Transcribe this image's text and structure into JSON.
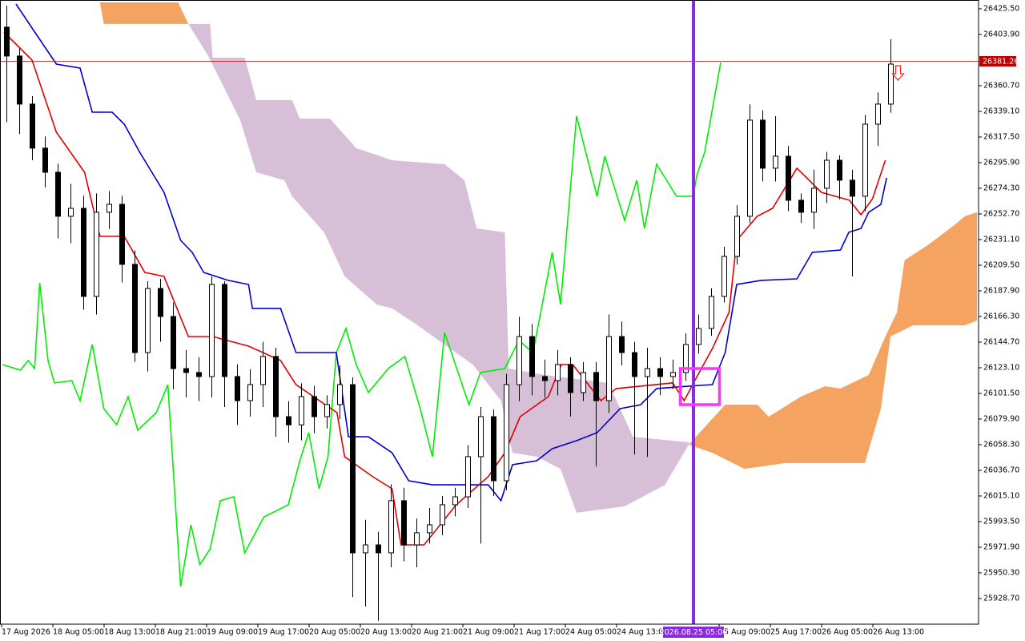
{
  "chart_data": {
    "type": "candlestick",
    "xlim": [
      -0.5,
      75.875
    ],
    "ylim": [
      25907.1,
      26432.9
    ],
    "yticks": [
      {
        "value": 26425.5,
        "label": "26425.50"
      },
      {
        "value": 26403.9,
        "label": "26403.90"
      },
      {
        "value": 26360.7,
        "label": "26360.70"
      },
      {
        "value": 26339.1,
        "label": "26339.10"
      },
      {
        "value": 26317.5,
        "label": "26317.50"
      },
      {
        "value": 26295.9,
        "label": "26295.90"
      },
      {
        "value": 26274.3,
        "label": "26274.30"
      },
      {
        "value": 26252.7,
        "label": "26252.70"
      },
      {
        "value": 26231.1,
        "label": "26231.10"
      },
      {
        "value": 26209.5,
        "label": "26209.50"
      },
      {
        "value": 26187.9,
        "label": "26187.90"
      },
      {
        "value": 26166.3,
        "label": "26166.30"
      },
      {
        "value": 26144.7,
        "label": "26144.70"
      },
      {
        "value": 26123.1,
        "label": "26123.10"
      },
      {
        "value": 26101.5,
        "label": "26101.50"
      },
      {
        "value": 26079.9,
        "label": "26079.90"
      },
      {
        "value": 26058.3,
        "label": "26058.30"
      },
      {
        "value": 26036.7,
        "label": "26036.70"
      },
      {
        "value": 26015.1,
        "label": "26015.10"
      },
      {
        "value": 25993.5,
        "label": "25993.50"
      },
      {
        "value": 25971.9,
        "label": "25971.90"
      },
      {
        "value": 25950.3,
        "label": "25950.30"
      },
      {
        "value": 25928.7,
        "label": "25928.70"
      }
    ],
    "x_labels": [
      "17 Aug 2026",
      "18 Aug 05:00",
      "18 Aug 13:00",
      "18 Aug 21:00",
      "19 Aug 09:00",
      "19 Aug 17:00",
      "20 Aug 05:00",
      "20 Aug 13:00",
      "20 Aug 21:00",
      "21 Aug 09:00",
      "21 Aug 17:00",
      "24 Aug 05:00",
      "24 Aug 13:00",
      null,
      "25 Aug 09:00",
      "25 Aug 17:00",
      "26 Aug 05:00",
      "26 Aug 13:00"
    ],
    "cursor_label": "2026.08.25 05:00",
    "current_price": 26381.26,
    "candles": {
      "open": [
        26410.0,
        26385.7,
        26345.2,
        26308.1,
        26287.8,
        26250.7,
        26257.4,
        26183.2,
        26254.1,
        26260.8,
        26210.2,
        26135.9,
        26189.9,
        26166.3,
        26122.4,
        26119.1,
        26115.7,
        26193.3,
        26115.7,
        26095.4,
        26108.9,
        26132.6,
        26081.9,
        26075.0,
        26098.8,
        26081.9,
        26092.1,
        26108.9,
        25967.2,
        25973.9,
        25967.2,
        26011.1,
        25973.9,
        25984.1,
        25990.8,
        26007.7,
        26014.4,
        26048.2,
        26081.9,
        26027.9,
        26108.9,
        26149.4,
        26115.7,
        26112.3,
        26125.8,
        26102.2,
        26119.1,
        26095.4,
        26149.4,
        26135.9,
        26115.7,
        26122.4,
        26115.7,
        26119.1,
        26142.7,
        26156.2,
        26183.2,
        26216.9,
        26250.7,
        26331.7,
        26291.2,
        26301.3,
        26264.2,
        26254.1,
        26274.3,
        26297.9,
        26281.1,
        26267.6,
        26328.3,
        26345.2
      ],
      "high": [
        26428,
        26392,
        26352,
        26318,
        26295,
        26278,
        26268,
        26270,
        26272,
        26268,
        26222,
        26196,
        26198,
        26178,
        26138,
        26132,
        26200,
        26196,
        26126,
        26122,
        26145,
        26140,
        26095,
        26110,
        26108,
        26100,
        26125,
        26115,
        25995,
        25985,
        26025,
        26022,
        25996,
        26005,
        26015,
        26022,
        26058,
        26090,
        26088,
        26118,
        26166,
        26160,
        26130,
        26138,
        26132,
        26128,
        26128,
        26168,
        26162,
        26145,
        26140,
        26132,
        26130,
        26152,
        26168,
        26190,
        26225,
        26260,
        26345,
        26340,
        26335,
        26310,
        26270,
        26290,
        26305,
        26302,
        26290,
        26336,
        26355,
        26400
      ],
      "low": [
        26330,
        26320,
        26298,
        26275,
        26232,
        26228,
        26172,
        26168,
        26240,
        26195,
        26128,
        26120,
        26145,
        26105,
        26098,
        26095,
        26098,
        26090,
        26075,
        26082,
        26090,
        26065,
        26060,
        26062,
        26068,
        26072,
        26080,
        25930,
        25922,
        25910,
        25955,
        25960,
        25955,
        25975,
        25982,
        25998,
        26005,
        25975,
        26015,
        26020,
        26095,
        26100,
        26098,
        26100,
        26082,
        26095,
        26040,
        26085,
        26125,
        26050,
        26048,
        26100,
        26105,
        26112,
        26135,
        26150,
        26178,
        26210,
        26245,
        26280,
        26280,
        26255,
        26245,
        26240,
        26262,
        26265,
        26200,
        26255,
        26310,
        26338
      ],
      "close": [
        26385.7,
        26345.2,
        26308.1,
        26287.8,
        26250.7,
        26257.4,
        26183.2,
        26254.1,
        26260.8,
        26210.2,
        26135.9,
        26189.9,
        26166.3,
        26122.4,
        26119.1,
        26115.7,
        26193.3,
        26115.7,
        26095.4,
        26108.9,
        26132.6,
        26081.9,
        26075.0,
        26098.8,
        26081.9,
        26092.1,
        26108.9,
        25967.2,
        25973.9,
        25967.2,
        26011.1,
        25973.9,
        25984.1,
        25990.8,
        26007.7,
        26014.4,
        26048.2,
        26081.9,
        26027.9,
        26108.9,
        26149.4,
        26115.7,
        26112.3,
        26125.8,
        26102.2,
        26119.1,
        26095.4,
        26149.4,
        26135.9,
        26115.7,
        26122.4,
        26115.7,
        26119.1,
        26142.7,
        26156.2,
        26183.2,
        26216.9,
        26250.7,
        26331.7,
        26291.2,
        26301.3,
        26264.2,
        26254.1,
        26274.3,
        26297.9,
        26281.1,
        26267.6,
        26328.3,
        26345.2,
        26378.9
      ]
    },
    "clouds": [
      {
        "color": "#f4a460",
        "upper": {
          "x": [
            7.3,
            13.4
          ],
          "values": [
            26430.9,
            26430.9
          ]
        },
        "lower": {
          "x": [
            7.6,
            14.2
          ],
          "values": [
            26412.7,
            26412.7
          ]
        }
      },
      {
        "color": "#d8bfd8",
        "upper": {
          "x": [
            14.2,
            15.9,
            16.1,
            18.6,
            19.5,
            22.3,
            22.9,
            25.25,
            27.3,
            30.1,
            34.2,
            35.75,
            36.7,
            38.9,
            39.2,
            42.0,
            47.0,
            48.9,
            53.25
          ],
          "values": [
            26412.7,
            26412.7,
            26384.3,
            26384.3,
            26348.6,
            26348.6,
            26333.0,
            26333.0,
            26308.1,
            26297.9,
            26294.5,
            26281.0,
            26240.5,
            26237.2,
            26122.4,
            26117.0,
            26110.3,
            26065.0,
            26060.3
          ]
        },
        "lower": {
          "x": [
            14.2,
            15.75,
            16.7,
            18.25,
            19.5,
            21.7,
            22.3,
            24.8,
            26.4,
            28.9,
            30.1,
            32.0,
            34.2,
            36.4,
            38.6,
            39.5,
            41.4,
            43.25,
            44.5,
            48.25,
            51.4,
            53.25
          ],
          "values": [
            26412.7,
            26385.7,
            26365.4,
            26331.7,
            26287.8,
            26281.0,
            26267.5,
            26237.2,
            26200.1,
            26176.4,
            26173.1,
            26159.6,
            26142.7,
            26125.8,
            26095.4,
            26051.5,
            26048.2,
            26038.0,
            26001.0,
            26006.3,
            26024.5,
            26058.3
          ]
        }
      },
      {
        "color": "#f4a460",
        "upper": {
          "x": [
            53.25,
            56.1,
            58.6,
            59.5,
            62.0,
            63.9,
            65.1,
            67.3,
            68.6,
            69.5,
            70.1,
            72.0,
            73.9,
            74.8,
            75.75
          ],
          "values": [
            26058.3,
            26092.0,
            26092.0,
            26081.9,
            26098.8,
            26107.6,
            26105.6,
            26117.0,
            26149.4,
            26169.7,
            26213.6,
            26227.1,
            26242.6,
            26250.7,
            26254.1
          ]
        },
        "lower": {
          "x": [
            53.25,
            55.1,
            57.6,
            60.75,
            67.0,
            68.25,
            69.0,
            70.75,
            74.8,
            75.75
          ],
          "values": [
            26058.3,
            26051.5,
            26038.0,
            26042.8,
            26042.8,
            26088.7,
            26149.4,
            26158.9,
            26158.9,
            26162.9
          ]
        }
      }
    ],
    "series": [
      {
        "color": "#00ee00",
        "x": [
          -0.3,
          1.1,
          1.7,
          2.2,
          2.6,
          3.25,
          3.75,
          5.1,
          5.75,
          6.7,
          7.6,
          8.6,
          9.5,
          10.25,
          11.7,
          12.6,
          13.6,
          14.4,
          15.1,
          15.9,
          16.7,
          17.75,
          18.6,
          20.1,
          22.0,
          22.9,
          23.6,
          24.4,
          25.1,
          25.75,
          26.5,
          27.3,
          28.25,
          29.8,
          31.1,
          32.3,
          33.25,
          34.2,
          36.1,
          37.0,
          38.9,
          40.0,
          41.1,
          42.6,
          43.25,
          44.5,
          46.1,
          46.7,
          48.25,
          49.2,
          49.8,
          50.75,
          52.3,
          53.6,
          53.9,
          54.5,
          55.75
        ],
        "values": [
          26125.8,
          26121.1,
          26129.2,
          26122.4,
          26194.6,
          26129.2,
          26110.3,
          26112.3,
          26095.4,
          26142.7,
          26088.7,
          26075.2,
          26098.8,
          26070.5,
          26085.3,
          26108.9,
          25938.8,
          25990.8,
          25957.2,
          25970.6,
          26011.1,
          26014.4,
          25967.2,
          25997.5,
          26007.7,
          26044.8,
          26068.4,
          26021.2,
          26048.2,
          26135.9,
          26156.2,
          26125.8,
          26102.2,
          26122.4,
          26132.6,
          26088.7,
          26048.2,
          26152.8,
          26092.0,
          26119.1,
          26122.4,
          26146.1,
          26135.9,
          26220.3,
          26176.4,
          26335.0,
          26267.5,
          26301.3,
          26247.3,
          26281.1,
          26240.5,
          26294.5,
          26267.5,
          26267.5,
          26285.8,
          26304.7,
          26380.3
        ]
      },
      {
        "color": "#0000cc",
        "x": [
          0.75,
          2.0,
          3.9,
          5.75,
          6.7,
          8.25,
          9.2,
          10.4,
          12.3,
          13.6,
          14.5,
          15.4,
          17.3,
          18.9,
          19.2,
          21.4,
          22.6,
          25.75,
          26.7,
          28.25,
          30.1,
          31.4,
          33.25,
          37.6,
          38.6,
          39.5,
          41.4,
          42.6,
          44.5,
          46.1,
          47.9,
          49.5,
          50.75,
          53.25,
          55.1,
          56.1,
          57.0,
          58.9,
          61.7,
          62.9,
          65.1,
          65.75,
          66.7,
          67.3,
          68.25,
          68.7
        ],
        "values": [
          26429.5,
          26409.3,
          26378.9,
          26375.5,
          26338.4,
          26338.4,
          26328.3,
          26304.7,
          26270.9,
          26230.4,
          26220.3,
          26203.4,
          26196.7,
          26193.3,
          26173.1,
          26173.1,
          26135.9,
          26135.9,
          26065.0,
          26065.0,
          26051.5,
          26027.9,
          26024.5,
          26024.5,
          26011.1,
          26041.4,
          26044.8,
          26054.9,
          26061.7,
          26068.4,
          26088.7,
          26092.0,
          26105.6,
          26107.6,
          26108.9,
          26135.9,
          26193.3,
          26196.7,
          26198.0,
          26220.3,
          26222.3,
          26237.2,
          26240.5,
          26254.1,
          26260.8,
          26283.1
        ]
      },
      {
        "color": "#e00000",
        "x": [
          -0.2,
          2.0,
          3.9,
          6.1,
          7.3,
          9.2,
          10.8,
          12.3,
          14.2,
          16.1,
          18.9,
          21.4,
          22.6,
          25.8,
          26.4,
          28.6,
          30.1,
          30.8,
          32.6,
          35.1,
          37.6,
          38.9,
          40.1,
          42.3,
          43.3,
          44.2,
          46.4,
          47.6,
          52.0,
          52.9,
          53.9,
          55.1,
          56.4,
          57.0,
          58.6,
          59.8,
          61.7,
          63.6,
          65.8,
          66.7,
          67.6,
          68.6
        ],
        "values": [
          26405.9,
          26382.3,
          26321.5,
          26287.8,
          26233.8,
          26233.8,
          26203.4,
          26200.1,
          26149.4,
          26149.4,
          26141.3,
          26129.2,
          26108.9,
          26085.3,
          26048.2,
          26031.3,
          26021.2,
          25973.9,
          25973.9,
          26007.7,
          26031.3,
          26051.5,
          26081.9,
          26098.8,
          26125.8,
          26125.8,
          26095.4,
          26105.6,
          26110.3,
          26095.4,
          26115.7,
          26139.3,
          26169.7,
          26230.4,
          26250.7,
          26257.4,
          26291.2,
          26270.9,
          26264.2,
          26252.0,
          26265.5,
          26297.9
        ]
      }
    ]
  }
}
